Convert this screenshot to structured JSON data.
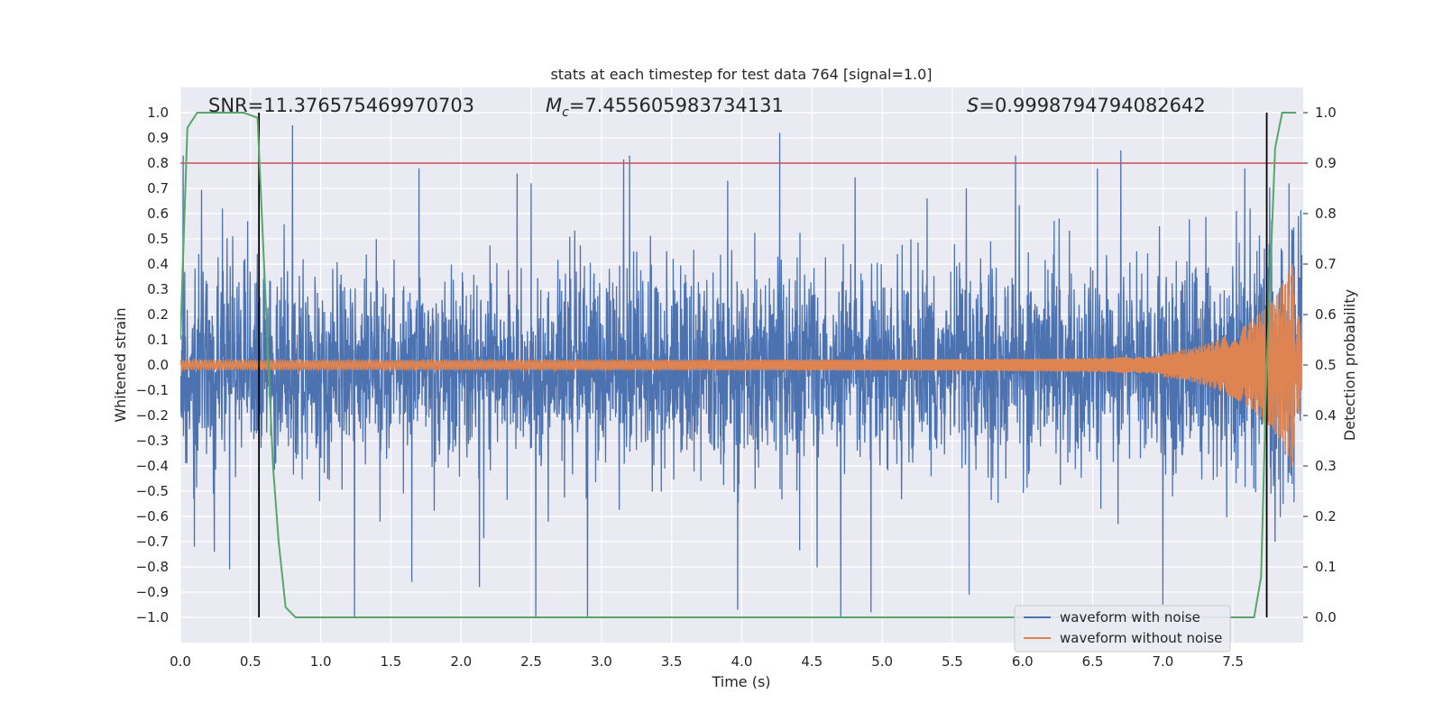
{
  "chart_data": {
    "type": "line",
    "title": "stats at each timestep for test data 764 [signal=1.0]",
    "xlabel": "Time (s)",
    "ylabel": "Whitened strain",
    "y2label": "Detection probability",
    "xlim": [
      0.0,
      8.0
    ],
    "ylim": [
      -1.1,
      1.1
    ],
    "y2lim": [
      -0.05,
      1.05
    ],
    "xticks": [
      0.0,
      0.5,
      1.0,
      1.5,
      2.0,
      2.5,
      3.0,
      3.5,
      4.0,
      4.5,
      5.0,
      5.5,
      6.0,
      6.5,
      7.0,
      7.5
    ],
    "xtick_labels": [
      "0.0",
      "0.5",
      "1.0",
      "1.5",
      "2.0",
      "2.5",
      "3.0",
      "3.5",
      "4.0",
      "4.5",
      "5.0",
      "5.5",
      "6.0",
      "6.5",
      "7.0",
      "7.5"
    ],
    "yticks": [
      1.0,
      0.9,
      0.8,
      0.7,
      0.6,
      0.5,
      0.4,
      0.3,
      0.2,
      0.1,
      0.0,
      -0.1,
      -0.2,
      -0.3,
      -0.4,
      -0.5,
      -0.6,
      -0.7,
      -0.8,
      -0.9,
      -1.0
    ],
    "ytick_labels": [
      "1.0",
      "0.9",
      "0.8",
      "0.7",
      "0.6",
      "0.5",
      "0.4",
      "0.3",
      "0.2",
      "0.1",
      "0.0",
      "−0.1",
      "−0.2",
      "−0.3",
      "−0.4",
      "−0.5",
      "−0.6",
      "−0.7",
      "−0.8",
      "−0.9",
      "−1.0"
    ],
    "y2ticks": [
      1.0,
      0.9,
      0.8,
      0.7,
      0.6,
      0.5,
      0.4,
      0.3,
      0.2,
      0.1,
      0.0
    ],
    "y2tick_labels": [
      "1.0",
      "0.9",
      "0.8",
      "0.7",
      "0.6",
      "0.5",
      "0.4",
      "0.3",
      "0.2",
      "0.1",
      "0.0"
    ],
    "annotations": {
      "snr": "SNR=11.376575469970703",
      "mc_symbol": "M",
      "mc_sub": "c",
      "mc_value": "=7.455605983734131",
      "s_symbol": "S",
      "s_value": "=0.9998794794082642"
    },
    "threshold_probability": 0.9,
    "vertical_markers": [
      0.56,
      7.74
    ],
    "series": [
      {
        "name": "waveform with noise",
        "axis": "left",
        "color": "#4c72b0",
        "description": "dense noise signal, envelope approx",
        "envelope_peaks_up": [
          [
            0.02,
            0.83
          ],
          [
            0.3,
            0.62
          ],
          [
            0.8,
            0.95
          ],
          [
            1.7,
            0.78
          ],
          [
            2.5,
            0.72
          ],
          [
            3.2,
            0.83
          ],
          [
            3.9,
            0.73
          ],
          [
            4.27,
            0.92
          ],
          [
            5.6,
            0.7
          ],
          [
            5.95,
            0.83
          ],
          [
            6.7,
            0.85
          ],
          [
            7.9,
            0.72
          ]
        ],
        "envelope_peaks_down": [
          [
            0.1,
            -0.72
          ],
          [
            0.35,
            -0.81
          ],
          [
            1.65,
            -0.86
          ],
          [
            2.13,
            -0.88
          ],
          [
            2.9,
            -1.0
          ],
          [
            3.97,
            -0.97
          ],
          [
            4.92,
            -0.98
          ],
          [
            5.62,
            -0.91
          ],
          [
            7.0,
            -0.95
          ],
          [
            7.8,
            -0.7
          ]
        ]
      },
      {
        "name": "waveform without noise",
        "axis": "left",
        "color": "#dd8452",
        "description": "chirp: amplitude grows from ~0.02 to ~0.28, frequency increases with time"
      },
      {
        "name": "detection probability",
        "axis": "right",
        "color": "#55a868",
        "x": [
          0.0,
          0.05,
          0.12,
          0.25,
          0.45,
          0.55,
          0.58,
          0.62,
          0.66,
          0.7,
          0.75,
          0.82,
          1.0,
          7.5,
          7.65,
          7.7,
          7.74,
          7.8,
          7.85,
          7.88,
          7.95
        ],
        "y": [
          0.55,
          0.97,
          1.0,
          1.0,
          1.0,
          0.99,
          0.8,
          0.55,
          0.3,
          0.15,
          0.02,
          0.0,
          0.0,
          0.0,
          0.0,
          0.08,
          0.5,
          0.93,
          1.0,
          1.0,
          1.0
        ]
      }
    ],
    "legend": {
      "placement": "bottom-right",
      "entries": [
        "waveform with noise",
        "waveform without noise"
      ]
    },
    "colors": {
      "plot_bg": "#eaeaf2",
      "grid": "#ffffff",
      "threshold": "#c44e52",
      "marker": "#000000"
    }
  }
}
